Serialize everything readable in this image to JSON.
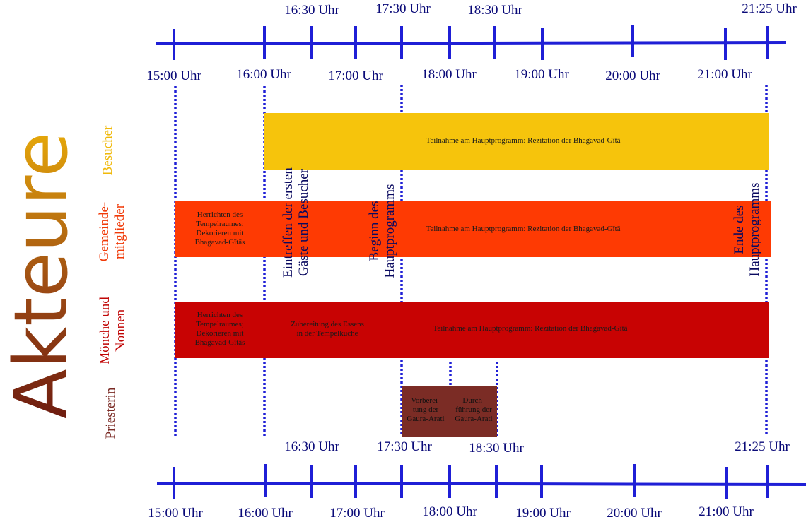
{
  "title": "Akteure",
  "colors": {
    "axis": "#1f1fd6",
    "dotted": "#1f1fd6",
    "besucher": "#f6c40c",
    "gemeinde": "#fe3a03",
    "moenche": "#c80303",
    "priesterin": "#7b2c25"
  },
  "axis_top": {
    "upper_labels": [
      "16:30 Uhr",
      "17:30 Uhr",
      "18:30 Uhr",
      "21:25 Uhr"
    ],
    "lower_labels": [
      "15:00 Uhr",
      "16:00 Uhr",
      "17:00 Uhr",
      "18:00 Uhr",
      "19:00 Uhr",
      "20:00 Uhr",
      "21:00 Uhr"
    ]
  },
  "axis_bottom": {
    "upper_labels": [
      "16:30 Uhr",
      "17:30 Uhr",
      "18:30 Uhr",
      "21:25 Uhr"
    ],
    "lower_labels": [
      "15:00 Uhr",
      "16:00 Uhr",
      "17:00 Uhr",
      "18:00 Uhr",
      "19:00 Uhr",
      "20:00 Uhr",
      "21:00 Uhr"
    ]
  },
  "actors": {
    "besucher": "Besucher",
    "gemeinde": "Gemeinde-\nmitglieder",
    "moenche": "Mönche und\nNonnen",
    "priesterin": "Priesterin"
  },
  "events": {
    "arrival": "Eintreffen der ersten\nGäste und Besucher",
    "start": "Beginn des\nHauptprogramms",
    "end": "Ende des\nHauptprogramms"
  },
  "bars": {
    "besucher_main": "Teilnahme am Hauptprogramm: Rezitation der Bhagavad-Gītā",
    "gemeinde_prep": "Herrichten des\nTempelraumes;\nDekorieren mit\nBhagavad-Gītās",
    "gemeinde_main": "Teilnahme am Hauptprogramm: Rezitation der Bhagavad-Gītā",
    "moenche_prep": "Herrichten des\nTempelraumes;\nDekorieren mit\nBhagavad-Gītās",
    "moenche_cook": "Zubereitung des Essens\nin der Tempelküche",
    "moenche_main": "Teilnahme am Hauptprogramm: Rezitation der Bhagavad-Gītā",
    "priest_prep": "Vorberei-\ntung der\nGaura-Arati",
    "priest_do": "Durch-\nführung der\nGaura-Arati"
  }
}
